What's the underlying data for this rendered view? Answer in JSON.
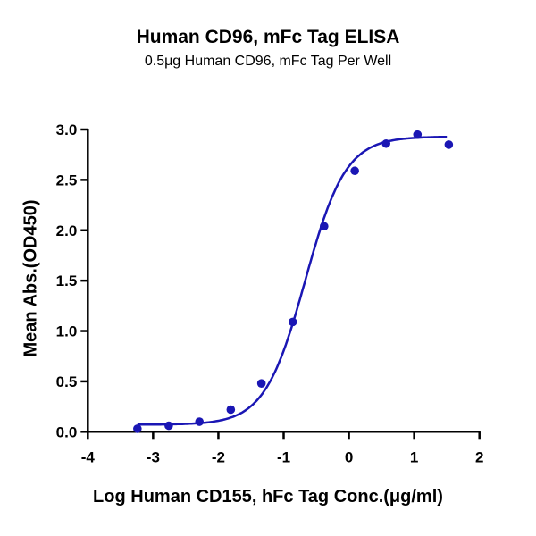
{
  "chart_data": {
    "type": "scatter",
    "title": "Human CD96, mFc Tag ELISA",
    "subtitle": "0.5μg Human CD96, mFc Tag Per Well",
    "xlabel": "Log Human CD155, hFc Tag Conc.(μg/ml)",
    "ylabel": "Mean Abs.(OD450)",
    "xlim": [
      -4,
      2
    ],
    "ylim": [
      0,
      3.0
    ],
    "xticks": [
      "-4",
      "-3",
      "-2",
      "-1",
      "0",
      "1",
      "2"
    ],
    "yticks": [
      "0.0",
      "0.5",
      "1.0",
      "1.5",
      "2.0",
      "2.5",
      "3.0"
    ],
    "grid": false,
    "color": "#1a16b4",
    "series": [
      {
        "x": [
          -3.24,
          -2.76,
          -2.29,
          -1.81,
          -1.34,
          -0.86,
          -0.38,
          0.09,
          0.57,
          1.05,
          1.53
        ],
        "y": [
          0.03,
          0.06,
          0.1,
          0.22,
          0.48,
          1.09,
          2.04,
          2.59,
          2.86,
          2.95,
          2.85
        ]
      }
    ],
    "fit": {
      "model": "4PL",
      "bottom": 0.07,
      "top": 2.93,
      "logEC50": -0.67,
      "hill": 1.4,
      "xrange": [
        -3.24,
        1.5
      ]
    }
  }
}
